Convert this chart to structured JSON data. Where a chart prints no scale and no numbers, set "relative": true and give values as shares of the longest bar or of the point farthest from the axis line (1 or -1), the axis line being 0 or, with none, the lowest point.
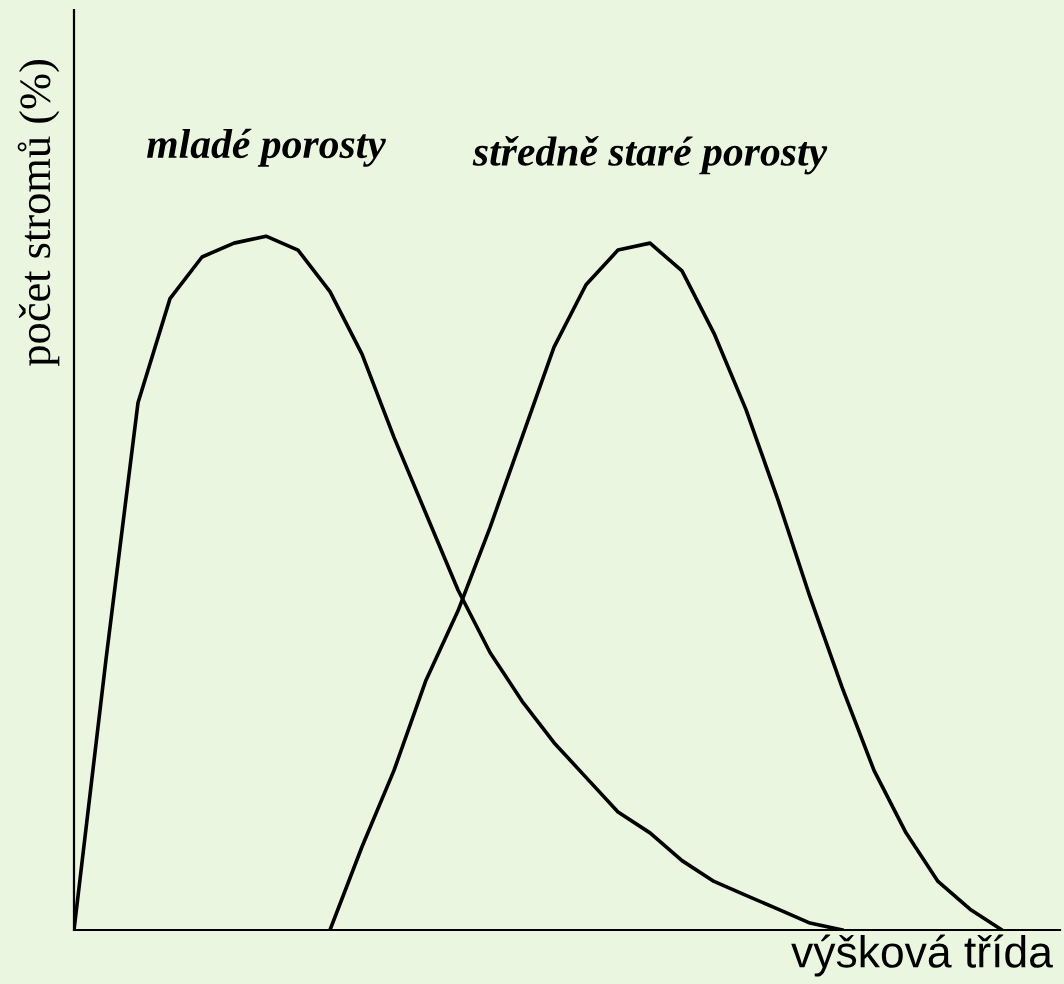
{
  "chart_data": {
    "type": "line",
    "relative": true,
    "xlabel": "výšková třída",
    "ylabel": "počet stromů (%)",
    "categories": [
      null,
      null,
      null,
      null,
      null,
      null,
      null,
      null,
      null,
      null,
      null,
      null,
      null,
      null,
      null,
      null,
      null,
      null,
      null,
      null,
      null,
      null,
      null,
      null,
      null,
      null,
      null,
      null,
      null,
      null,
      null
    ],
    "series": [
      {
        "name": "mladé porosty",
        "color": "#000000",
        "values": [
          0,
          0.39,
          0.76,
          0.91,
          0.97,
          0.99,
          1.0,
          0.98,
          0.92,
          0.83,
          0.71,
          0.6,
          0.49,
          0.4,
          0.33,
          0.27,
          0.22,
          0.17,
          0.14,
          0.1,
          0.07,
          0.05,
          0.03,
          0.01,
          0,
          null,
          null,
          null,
          null,
          null,
          null
        ]
      },
      {
        "name": "středně staré porosty",
        "color": "#000000",
        "values": [
          null,
          null,
          null,
          null,
          null,
          null,
          null,
          null,
          0,
          0.12,
          0.23,
          0.36,
          0.46,
          0.58,
          0.71,
          0.84,
          0.93,
          0.98,
          0.99,
          0.95,
          0.86,
          0.75,
          0.62,
          0.48,
          0.35,
          0.23,
          0.14,
          0.07,
          0.03,
          0,
          null
        ]
      }
    ],
    "legend": false
  }
}
